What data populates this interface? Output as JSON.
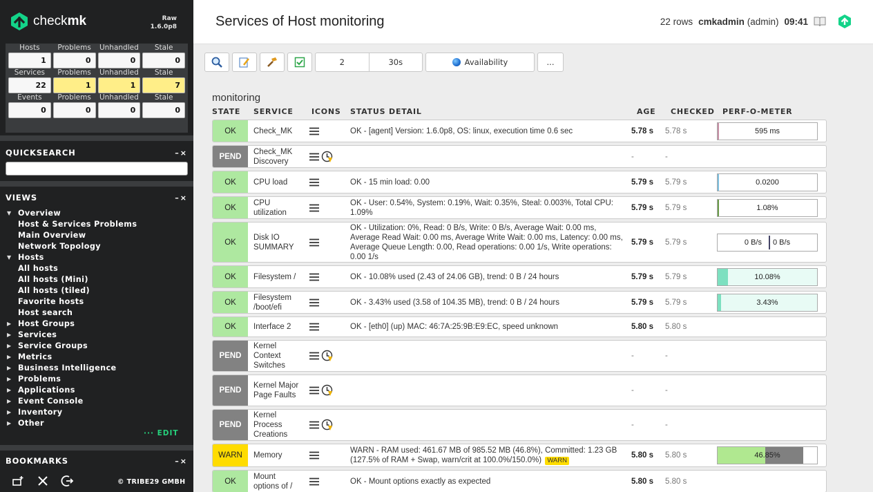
{
  "sidebar": {
    "brand": "checkmk",
    "edition": {
      "name": "Raw",
      "version": "1.6.0p8"
    },
    "stats": [
      {
        "label": "Hosts",
        "cols": [
          {
            "head": "Hosts",
            "value": "1"
          },
          {
            "head": "Problems",
            "value": "0"
          },
          {
            "head": "Unhandled",
            "value": "0"
          },
          {
            "head": "Stale",
            "value": "0"
          }
        ]
      },
      {
        "label": "Services",
        "cols": [
          {
            "head": "Services",
            "value": "22"
          },
          {
            "head": "Problems",
            "value": "1"
          },
          {
            "head": "Unhandled",
            "value": "1"
          },
          {
            "head": "Stale",
            "value": "7"
          }
        ]
      },
      {
        "label": "Events",
        "cols": [
          {
            "head": "Events",
            "value": "0"
          },
          {
            "head": "Problems",
            "value": "0"
          },
          {
            "head": "Unhandled",
            "value": "0"
          },
          {
            "head": "Stale",
            "value": "0"
          }
        ]
      }
    ],
    "quicksearch": {
      "title": "QUICKSEARCH",
      "value": ""
    },
    "views": {
      "title": "VIEWS",
      "tree": [
        {
          "label": "Overview",
          "open": true,
          "children": [
            "Host & Services Problems",
            "Main Overview",
            "Network Topology"
          ]
        },
        {
          "label": "Hosts",
          "open": true,
          "children": [
            "All hosts",
            "All hosts (Mini)",
            "All hosts (tiled)",
            "Favorite hosts",
            "Host search"
          ]
        },
        {
          "label": "Host Groups",
          "open": false,
          "children": []
        },
        {
          "label": "Services",
          "open": false,
          "children": []
        },
        {
          "label": "Service Groups",
          "open": false,
          "children": []
        },
        {
          "label": "Metrics",
          "open": false,
          "children": []
        },
        {
          "label": "Business Intelligence",
          "open": false,
          "children": []
        },
        {
          "label": "Problems",
          "open": false,
          "children": []
        },
        {
          "label": "Applications",
          "open": false,
          "children": []
        },
        {
          "label": "Event Console",
          "open": false,
          "children": []
        },
        {
          "label": "Inventory",
          "open": false,
          "children": []
        },
        {
          "label": "Other",
          "open": false,
          "children": []
        }
      ],
      "edit": "EDIT"
    },
    "bookmarks": {
      "title": "BOOKMARKS"
    },
    "footer": {
      "copyright": "© TRIBE29 GMBH",
      "icons": [
        "add-snapin-icon",
        "configure-icon",
        "logout-icon"
      ]
    }
  },
  "header": {
    "title": "Services of Host monitoring",
    "rows": "22 rows",
    "user": "cmkadmin",
    "role": "(admin)",
    "time": "09:41"
  },
  "toolbar": {
    "buttons": [
      "search-icon",
      "edit-view-icon",
      "commands-icon",
      "checkbox-icon"
    ],
    "columns": "2",
    "refresh": "30s",
    "availability": "Availability",
    "more": "..."
  },
  "table": {
    "group": "monitoring",
    "columns": [
      "STATE",
      "SERVICE",
      "ICONS",
      "STATUS DETAIL",
      "AGE",
      "CHECKED",
      "PERF-O-METER"
    ],
    "colors": {
      "ok": "#aee8a0",
      "pend": "#828282",
      "warn": "#ffdc00"
    },
    "rows": [
      {
        "state": "OK",
        "service": "Check_MK",
        "icons": [
          "menu"
        ],
        "detail": "OK - [agent] Version: 1.6.0p8, OS: linux, execution time 0.6 sec",
        "age": "5.78 s",
        "checked": "5.78 s",
        "perf": {
          "label": "595 ms",
          "fill": 0.01,
          "color": "#c88ea6"
        },
        "h": 33
      },
      {
        "state": "PEND",
        "service": "Check_MK Discovery",
        "icons": [
          "menu",
          "clock"
        ],
        "detail": "",
        "age": "-",
        "checked": "-",
        "perf": null,
        "h": 33
      },
      {
        "state": "OK",
        "service": "CPU load",
        "icons": [
          "menu"
        ],
        "detail": "OK - 15 min load: 0.00",
        "age": "5.79 s",
        "checked": "5.79 s",
        "perf": {
          "label": "0.0200",
          "fill": 0.01,
          "color": "#7dc0e0"
        },
        "h": 33
      },
      {
        "state": "OK",
        "service": "CPU utilization",
        "icons": [
          "menu"
        ],
        "detail": "OK - User: 0.54%, System: 0.19%, Wait: 0.35%, Steal: 0.003%, Total CPU: 1.09%",
        "age": "5.79 s",
        "checked": "5.79 s",
        "perf": {
          "label": "1.08%",
          "fill": 0.011,
          "color": "#6a9b48"
        },
        "h": 33
      },
      {
        "state": "OK",
        "service": "Disk IO SUMMARY",
        "icons": [
          "menu"
        ],
        "detail": "OK - Utilization: 0%, Read: 0 B/s, Write: 0 B/s, Average Wait: 0.00 ms, Average Read Wait: 0.00 ms, Average Write Wait: 0.00 ms, Latency: 0.00 ms, Average Queue Length: 0.00, Read operations: 0.00 1/s, Write operations: 0.00 1/s",
        "age": "5.79 s",
        "checked": "5.79 s",
        "perf": {
          "dual": [
            "0 B/s",
            "0 B/s"
          ]
        },
        "h": 59
      },
      {
        "state": "OK",
        "service": "Filesystem /",
        "icons": [
          "menu"
        ],
        "detail": "OK - 10.08% used (2.43 of 24.06 GB), trend: 0 B / 24 hours",
        "age": "5.79 s",
        "checked": "5.79 s",
        "perf": {
          "label": "10.08%",
          "fill": 0.1008,
          "color": "#7de0c0",
          "bg": "#e8fbf5"
        },
        "h": 33
      },
      {
        "state": "OK",
        "service": "Filesystem /boot/efi",
        "icons": [
          "menu"
        ],
        "detail": "OK - 3.43% used (3.58 of 104.35 MB), trend: 0 B / 24 hours",
        "age": "5.79 s",
        "checked": "5.79 s",
        "perf": {
          "label": "3.43%",
          "fill": 0.0343,
          "color": "#7de0c0",
          "bg": "#e8fbf5"
        },
        "h": 33
      },
      {
        "state": "OK",
        "service": "Interface 2",
        "icons": [
          "menu"
        ],
        "detail": "OK - [eth0] (up) MAC: 46:7A:25:9B:E9:EC, speed unknown",
        "age": "5.80 s",
        "checked": "5.80 s",
        "perf": null,
        "h": 30
      },
      {
        "state": "PEND",
        "service": "Kernel Context Switches",
        "icons": [
          "menu",
          "clock"
        ],
        "detail": "",
        "age": "-",
        "checked": "-",
        "perf": null,
        "h": 46
      },
      {
        "state": "PEND",
        "service": "Kernel Major Page Faults",
        "icons": [
          "menu",
          "clock"
        ],
        "detail": "",
        "age": "-",
        "checked": "-",
        "perf": null,
        "h": 46
      },
      {
        "state": "PEND",
        "service": "Kernel Process Creations",
        "icons": [
          "menu",
          "clock"
        ],
        "detail": "",
        "age": "-",
        "checked": "-",
        "perf": null,
        "h": 46
      },
      {
        "state": "WARN",
        "service": "Memory",
        "icons": [
          "menu"
        ],
        "detail": "WARN - RAM used: 461.67 MB of 985.52 MB (46.8%), Committed: 1.23 GB (127.5% of RAM + Swap, warn/crit at 100.0%/150.0%)",
        "badge": "WARN",
        "age": "5.80 s",
        "checked": "5.80 s",
        "perf": {
          "label": "46.85%",
          "fill": 0.4685,
          "color": "#b0e890",
          "fill2": 0.37,
          "color2": "#808080"
        },
        "h": 34
      },
      {
        "state": "OK",
        "service": "Mount options of /",
        "icons": [
          "menu"
        ],
        "detail": "OK - Mount options exactly as expected",
        "age": "5.80 s",
        "checked": "5.80 s",
        "perf": null,
        "h": 33
      }
    ]
  }
}
